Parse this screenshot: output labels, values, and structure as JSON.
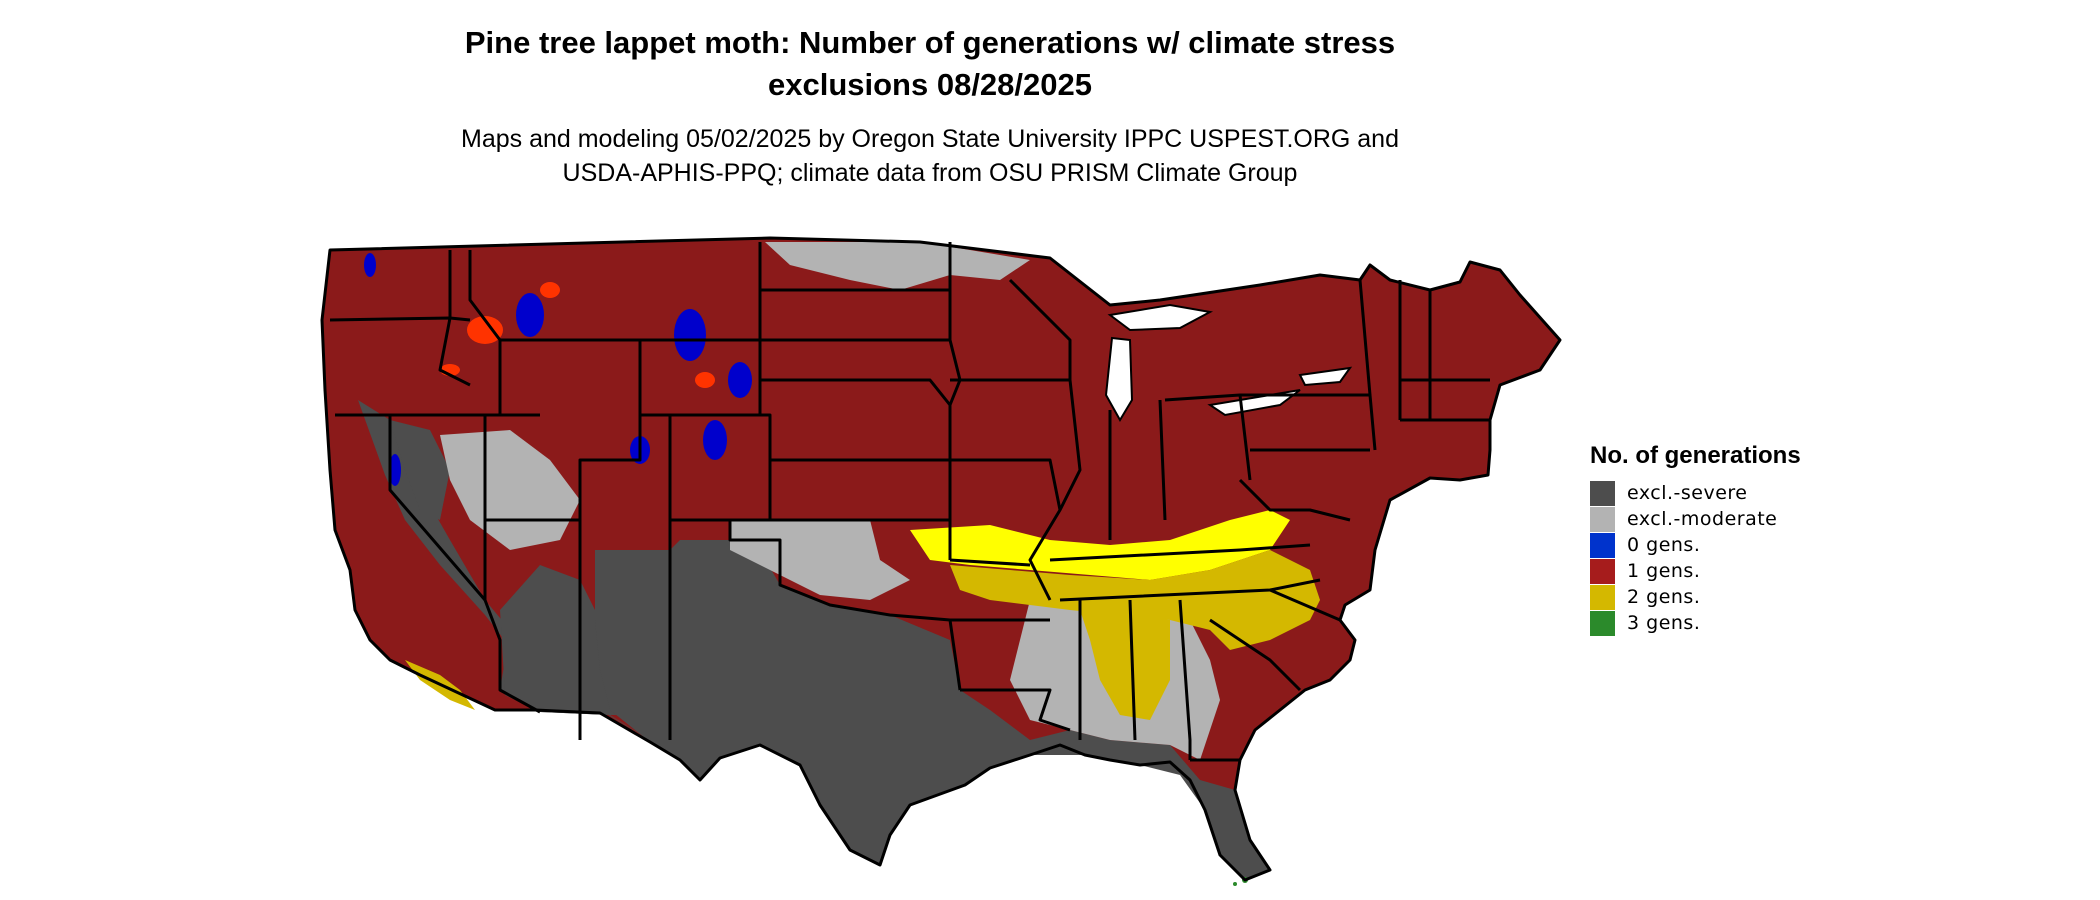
{
  "title_line1": "Pine tree lappet moth: Number of generations w/ climate stress",
  "title_line2": "exclusions 08/28/2025",
  "subtitle_line1": "Maps and modeling 05/02/2025 by Oregon State University IPPC USPEST.ORG and",
  "subtitle_line2": "USDA-APHIS-PPQ; climate data from OSU PRISM Climate Group",
  "legend": {
    "title": "No. of generations",
    "items": [
      {
        "label": "excl.-severe",
        "color": "#4d4d4d"
      },
      {
        "label": "excl.-moderate",
        "color": "#b3b3b3"
      },
      {
        "label": "0 gens.",
        "color": "#0033cc"
      },
      {
        "label": "1 gens.",
        "color": "#a61c1c"
      },
      {
        "label": "2 gens.",
        "color": "#d4b800"
      },
      {
        "label": "3 gens.",
        "color": "#2b8a2b"
      }
    ]
  },
  "map_colors": {
    "one_gen": "#8b1a1a",
    "two_gen_bright": "#ffff00",
    "two_gen_dark": "#d4b800",
    "excl_severe": "#4d4d4d",
    "excl_moderate": "#b3b3b3",
    "zero_gen": "#0000cc",
    "high_elevation": "#ff3300",
    "three_gen": "#2b8a2b"
  }
}
